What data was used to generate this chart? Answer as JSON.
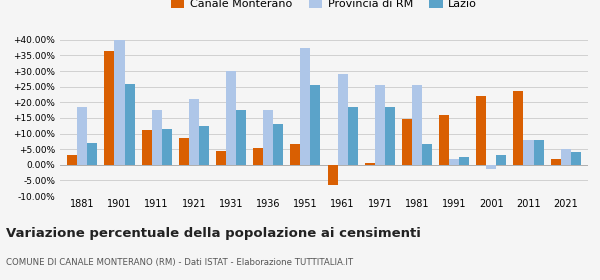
{
  "years": [
    1881,
    1901,
    1911,
    1921,
    1931,
    1936,
    1951,
    1961,
    1971,
    1981,
    1991,
    2001,
    2011,
    2021
  ],
  "canale": [
    3.0,
    36.5,
    11.0,
    8.5,
    4.5,
    5.5,
    6.5,
    -6.5,
    0.5,
    14.5,
    16.0,
    22.0,
    23.5,
    2.0
  ],
  "provincia": [
    18.5,
    40.0,
    17.5,
    21.0,
    30.0,
    17.5,
    37.5,
    29.0,
    25.5,
    25.5,
    2.0,
    -1.5,
    8.0,
    5.0
  ],
  "lazio": [
    7.0,
    26.0,
    11.5,
    12.5,
    17.5,
    13.0,
    25.5,
    18.5,
    18.5,
    6.5,
    2.5,
    3.0,
    8.0,
    4.0
  ],
  "canale_color": "#d95f02",
  "provincia_color": "#aec6e8",
  "lazio_color": "#5ba3c9",
  "title": "Variazione percentuale della popolazione ai censimenti",
  "subtitle": "COMUNE DI CANALE MONTERANO (RM) - Dati ISTAT - Elaborazione TUTTITALIA.IT",
  "legend_labels": [
    "Canale Monterano",
    "Provincia di RM",
    "Lazio"
  ],
  "ylim": [
    -10,
    42
  ],
  "yticks": [
    -10,
    -5,
    0,
    5,
    10,
    15,
    20,
    25,
    30,
    35,
    40
  ],
  "grid_color": "#d0d0d0",
  "bg_color": "#f5f5f5"
}
